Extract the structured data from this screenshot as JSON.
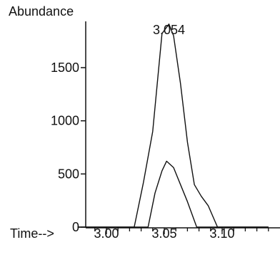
{
  "chart_data": {
    "type": "line",
    "title": "",
    "ylabel": "Abundance",
    "xlabel": "Time-->",
    "xlim": [
      2.975,
      3.14
    ],
    "ylim": [
      0,
      1950
    ],
    "x_ticks": [
      {
        "value": 3.0,
        "label": "3.00"
      },
      {
        "value": 3.05,
        "label": "3.05"
      },
      {
        "value": 3.1,
        "label": "3.10"
      }
    ],
    "y_ticks": [
      {
        "value": 0,
        "label": "0"
      },
      {
        "value": 500,
        "label": "500"
      },
      {
        "value": 1000,
        "label": "1000"
      },
      {
        "value": 1500,
        "label": "1500"
      }
    ],
    "series": [
      {
        "x": [
          2.975,
          3.024,
          3.032,
          3.04,
          3.048,
          3.054,
          3.058,
          3.064,
          3.07,
          3.076,
          3.082,
          3.088,
          3.096,
          3.14
        ],
        "y": [
          0,
          0,
          420,
          900,
          1820,
          1910,
          1800,
          1350,
          800,
          400,
          290,
          200,
          0,
          0
        ]
      },
      {
        "x": [
          2.975,
          3.036,
          3.042,
          3.048,
          3.052,
          3.058,
          3.064,
          3.07,
          3.078,
          3.14
        ],
        "y": [
          0,
          0,
          320,
          530,
          620,
          560,
          400,
          240,
          0,
          0
        ]
      }
    ],
    "annotations": [
      {
        "text": "3.054",
        "x": 3.054,
        "y": 1910
      }
    ],
    "grid": false,
    "legend": "none"
  }
}
